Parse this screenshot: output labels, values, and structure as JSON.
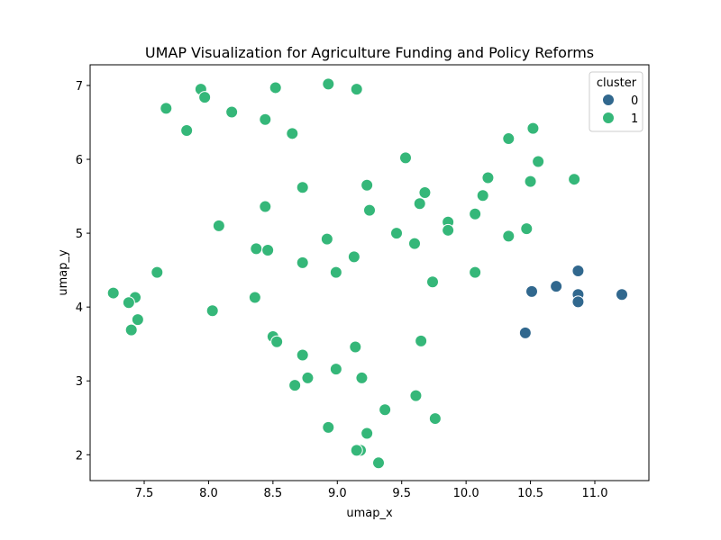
{
  "chart_data": {
    "type": "scatter",
    "title": "UMAP Visualization for Agriculture Funding and Policy Reforms",
    "xlabel": "umap_x",
    "ylabel": "umap_y",
    "xlim": [
      7.08,
      11.42
    ],
    "ylim": [
      1.65,
      7.28
    ],
    "xticks": [
      "7.5",
      "8.0",
      "8.5",
      "9.0",
      "9.5",
      "10.0",
      "10.5",
      "11.0"
    ],
    "yticks": [
      "2",
      "3",
      "4",
      "5",
      "6",
      "7"
    ],
    "grid": false,
    "legend": {
      "title": "cluster",
      "position": "top-right"
    },
    "series": [
      {
        "name": "0",
        "color": "#31688e",
        "points": [
          [
            10.87,
            4.49
          ],
          [
            10.51,
            4.21
          ],
          [
            10.7,
            4.28
          ],
          [
            10.87,
            4.17
          ],
          [
            10.87,
            4.07
          ],
          [
            11.21,
            4.17
          ],
          [
            10.46,
            3.65
          ]
        ]
      },
      {
        "name": "1",
        "color": "#35b779",
        "points": [
          [
            7.94,
            6.95
          ],
          [
            8.52,
            6.97
          ],
          [
            8.93,
            7.02
          ],
          [
            9.15,
            6.95
          ],
          [
            7.67,
            6.69
          ],
          [
            7.97,
            6.84
          ],
          [
            8.18,
            6.64
          ],
          [
            8.44,
            6.54
          ],
          [
            7.83,
            6.39
          ],
          [
            8.65,
            6.35
          ],
          [
            10.52,
            6.42
          ],
          [
            10.33,
            6.28
          ],
          [
            9.53,
            6.02
          ],
          [
            10.56,
            5.97
          ],
          [
            10.17,
            5.75
          ],
          [
            10.84,
            5.73
          ],
          [
            10.5,
            5.7
          ],
          [
            9.23,
            5.65
          ],
          [
            8.73,
            5.62
          ],
          [
            9.68,
            5.55
          ],
          [
            10.13,
            5.51
          ],
          [
            9.64,
            5.4
          ],
          [
            8.44,
            5.36
          ],
          [
            9.25,
            5.31
          ],
          [
            10.07,
            5.26
          ],
          [
            9.86,
            5.15
          ],
          [
            8.08,
            5.1
          ],
          [
            10.47,
            5.06
          ],
          [
            9.86,
            5.04
          ],
          [
            9.46,
            5.0
          ],
          [
            10.33,
            4.96
          ],
          [
            8.92,
            4.92
          ],
          [
            9.6,
            4.86
          ],
          [
            8.37,
            4.79
          ],
          [
            8.46,
            4.77
          ],
          [
            9.13,
            4.68
          ],
          [
            8.73,
            4.6
          ],
          [
            7.6,
            4.47
          ],
          [
            8.99,
            4.47
          ],
          [
            10.07,
            4.47
          ],
          [
            9.74,
            4.34
          ],
          [
            7.26,
            4.19
          ],
          [
            7.43,
            4.13
          ],
          [
            8.36,
            4.13
          ],
          [
            7.38,
            4.06
          ],
          [
            8.03,
            3.95
          ],
          [
            7.45,
            3.83
          ],
          [
            7.4,
            3.69
          ],
          [
            8.5,
            3.6
          ],
          [
            8.53,
            3.53
          ],
          [
            9.65,
            3.54
          ],
          [
            9.14,
            3.46
          ],
          [
            8.73,
            3.35
          ],
          [
            8.99,
            3.16
          ],
          [
            8.77,
            3.04
          ],
          [
            9.19,
            3.04
          ],
          [
            8.67,
            2.94
          ],
          [
            9.61,
            2.8
          ],
          [
            9.37,
            2.61
          ],
          [
            9.76,
            2.49
          ],
          [
            8.93,
            2.37
          ],
          [
            9.23,
            2.29
          ],
          [
            9.18,
            2.06
          ],
          [
            9.15,
            2.06
          ],
          [
            9.32,
            1.89
          ]
        ]
      }
    ]
  }
}
